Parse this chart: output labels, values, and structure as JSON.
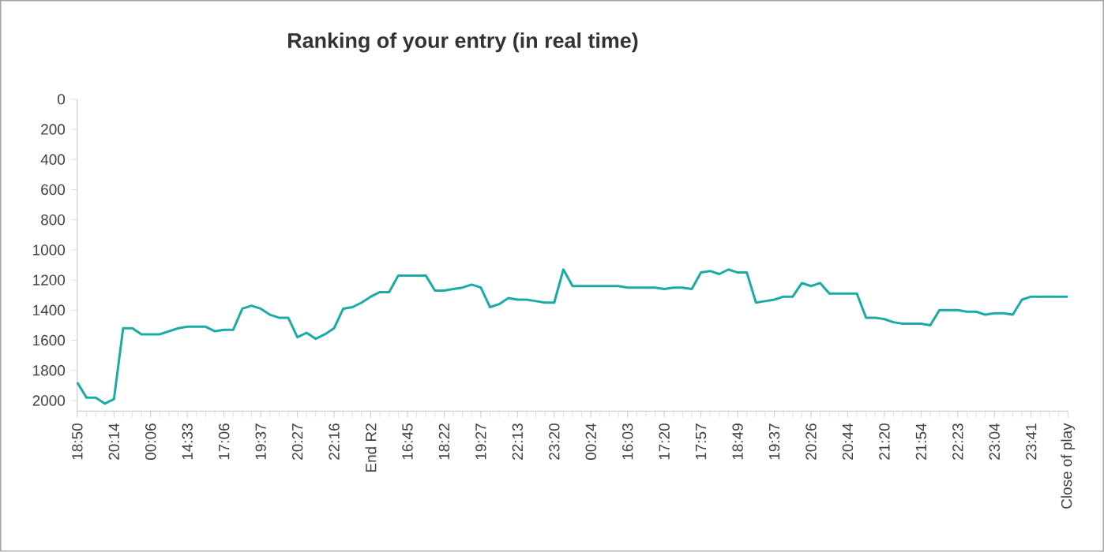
{
  "chart_data": {
    "type": "line",
    "title": "Ranking of your entry (in real time)",
    "categories": [
      "18:50",
      null,
      null,
      null,
      "20:14",
      null,
      null,
      null,
      "00:06",
      null,
      null,
      null,
      "14:33",
      null,
      null,
      null,
      "17:06",
      null,
      null,
      null,
      "19:37",
      null,
      null,
      null,
      "20:27",
      null,
      null,
      null,
      "22:16",
      null,
      null,
      null,
      "End R2",
      null,
      null,
      null,
      "16:45",
      null,
      null,
      null,
      "18:22",
      null,
      null,
      null,
      "19:27",
      null,
      null,
      null,
      "22:13",
      null,
      null,
      null,
      "23:20",
      null,
      null,
      null,
      "00:24",
      null,
      null,
      null,
      "16:03",
      null,
      null,
      null,
      "17:20",
      null,
      null,
      null,
      "17:57",
      null,
      null,
      null,
      "18:49",
      null,
      null,
      null,
      "19:37",
      null,
      null,
      null,
      "20:26",
      null,
      null,
      null,
      "20:44",
      null,
      null,
      null,
      "21:20",
      null,
      null,
      null,
      "21:54",
      null,
      null,
      null,
      "22:23",
      null,
      null,
      null,
      "23:04",
      null,
      null,
      null,
      "23:41",
      null,
      null,
      null,
      "Close of play"
    ],
    "values": [
      1880,
      1980,
      1980,
      2020,
      1990,
      1520,
      1520,
      1560,
      1560,
      1560,
      1540,
      1520,
      1510,
      1510,
      1510,
      1540,
      1530,
      1530,
      1390,
      1370,
      1390,
      1430,
      1450,
      1450,
      1580,
      1550,
      1590,
      1560,
      1520,
      1390,
      1380,
      1350,
      1310,
      1280,
      1280,
      1170,
      1170,
      1170,
      1170,
      1270,
      1270,
      1260,
      1250,
      1230,
      1250,
      1380,
      1360,
      1320,
      1330,
      1330,
      1340,
      1350,
      1350,
      1130,
      1240,
      1240,
      1240,
      1240,
      1240,
      1240,
      1250,
      1250,
      1250,
      1250,
      1260,
      1250,
      1250,
      1260,
      1150,
      1140,
      1160,
      1130,
      1150,
      1150,
      1350,
      1340,
      1330,
      1310,
      1310,
      1220,
      1240,
      1220,
      1290,
      1290,
      1290,
      1290,
      1450,
      1450,
      1460,
      1480,
      1490,
      1490,
      1490,
      1500,
      1400,
      1400,
      1400,
      1410,
      1410,
      1430,
      1420,
      1420,
      1430,
      1330,
      1310,
      1310,
      1310,
      1310,
      1310
    ],
    "color": "#1aaca4",
    "ylim": [
      2070,
      0
    ],
    "yticks": [
      0,
      200,
      400,
      600,
      800,
      1000,
      1200,
      1400,
      1600,
      1800,
      2000
    ]
  }
}
